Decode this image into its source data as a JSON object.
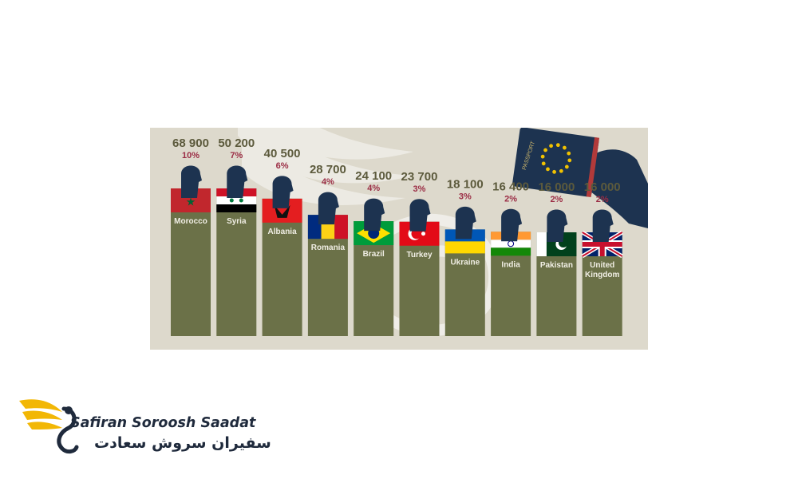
{
  "chart_data": {
    "type": "bar",
    "categories": [
      "Morocco",
      "Syria",
      "Albania",
      "Romania",
      "Brazil",
      "Turkey",
      "Ukraine",
      "India",
      "Pakistan",
      "United Kingdom"
    ],
    "values": [
      68900,
      50200,
      40500,
      28700,
      24100,
      23700,
      18100,
      16400,
      16000,
      16000
    ],
    "value_labels": [
      "68 900",
      "50 200",
      "40 500",
      "28 700",
      "24 100",
      "23 700",
      "18 100",
      "16 400",
      "16 000",
      "16 000"
    ],
    "percent_labels": [
      "10%",
      "7%",
      "6%",
      "4%",
      "4%",
      "3%",
      "3%",
      "2%",
      "2%",
      "2%"
    ],
    "bar_color": "#6b7148",
    "value_color": "#5c5a3c",
    "percent_color": "#9b2d45",
    "figure_color": "#1d3350",
    "flags": [
      "morocco-flag-icon",
      "syria-flag-icon",
      "albania-flag-icon",
      "romania-flag-icon",
      "brazil-flag-icon",
      "turkey-flag-icon",
      "ukraine-flag-icon",
      "india-flag-icon",
      "pakistan-flag-icon",
      "uk-flag-icon"
    ],
    "passport_label": "PASSPORT",
    "passport_color": "#1d3350"
  },
  "brand": {
    "name": "Safiran Soroosh Saadat",
    "name_fa": "سفیران سروش سعادت",
    "accent_color": "#f2b705",
    "dark_color": "#1f2a3c"
  }
}
